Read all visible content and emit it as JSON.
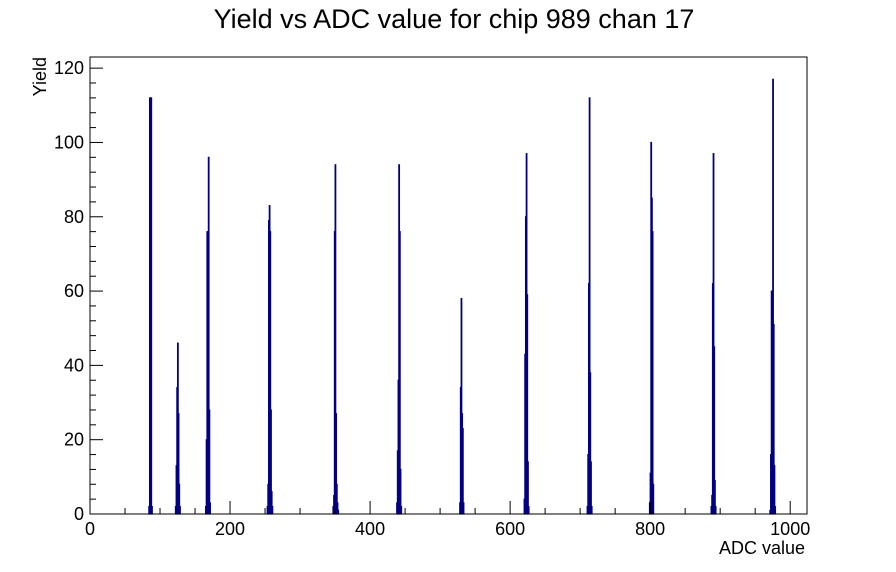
{
  "chart_data": {
    "type": "bar",
    "title": "Yield vs ADC value for chip 989 chan 17",
    "xlabel": "ADC value",
    "ylabel": "Yield",
    "xlim": [
      0,
      1024
    ],
    "ylim": [
      0,
      123
    ],
    "xticks": [
      0,
      200,
      400,
      600,
      800,
      1000
    ],
    "yticks": [
      0,
      20,
      40,
      60,
      80,
      100,
      120
    ],
    "grid": false,
    "legend": "none",
    "series_color": "#000080",
    "x": [
      84,
      85,
      86,
      87,
      88,
      122,
      123,
      124,
      125,
      126,
      127,
      128,
      165,
      166,
      167,
      168,
      169,
      170,
      171,
      253,
      254,
      255,
      256,
      257,
      258,
      259,
      260,
      347,
      348,
      349,
      350,
      351,
      352,
      353,
      354,
      438,
      439,
      440,
      441,
      442,
      443,
      444,
      528,
      529,
      530,
      531,
      532,
      533,
      620,
      621,
      622,
      623,
      624,
      625,
      626,
      710,
      711,
      712,
      713,
      714,
      715,
      716,
      799,
      800,
      801,
      802,
      803,
      804,
      887,
      888,
      889,
      890,
      891,
      892,
      893,
      971,
      972,
      973,
      974,
      975,
      976,
      977,
      978
    ],
    "values": [
      2,
      112,
      110,
      112,
      2,
      2,
      13,
      34,
      46,
      27,
      8,
      2,
      2,
      20,
      76,
      61,
      96,
      28,
      3,
      2,
      8,
      79,
      83,
      76,
      28,
      6,
      2,
      2,
      5,
      76,
      94,
      27,
      8,
      3,
      1,
      3,
      17,
      36,
      94,
      76,
      12,
      2,
      3,
      34,
      58,
      27,
      23,
      3,
      4,
      43,
      80,
      97,
      59,
      14,
      2,
      2,
      16,
      62,
      112,
      38,
      14,
      2,
      3,
      11,
      100,
      85,
      76,
      8,
      2,
      5,
      62,
      97,
      45,
      9,
      2,
      1,
      16,
      60,
      45,
      117,
      51,
      13,
      2
    ]
  }
}
